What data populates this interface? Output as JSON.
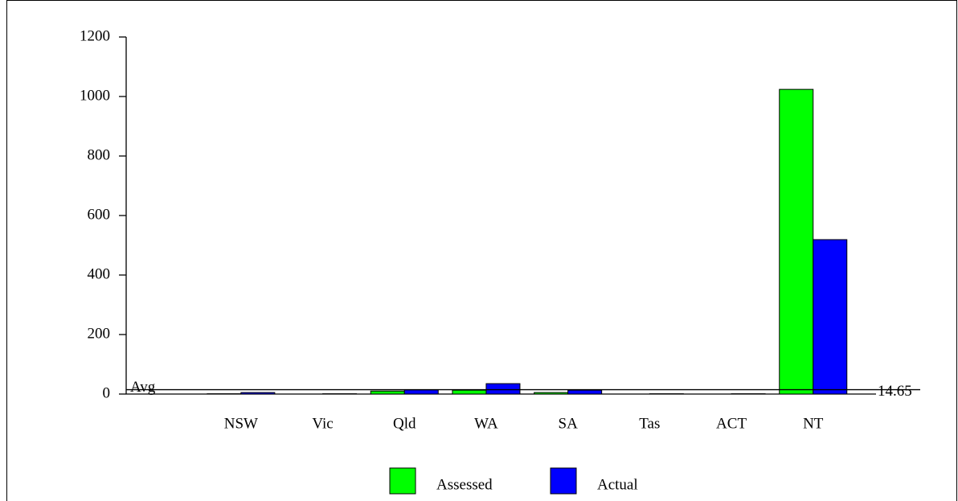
{
  "chart_data": {
    "type": "bar",
    "categories": [
      "NSW",
      "Vic",
      "Qld",
      "WA",
      "SA",
      "Tas",
      "ACT",
      "NT"
    ],
    "series": [
      {
        "name": "Assessed",
        "color": "#00ff00",
        "values": [
          1,
          0,
          10,
          13,
          5,
          0,
          0,
          1024
        ]
      },
      {
        "name": "Actual",
        "color": "#0000ff",
        "values": [
          5,
          1,
          14,
          35,
          13,
          1,
          1,
          519
        ]
      }
    ],
    "ylim": [
      0,
      1200
    ],
    "yticks": [
      0,
      200,
      400,
      600,
      800,
      1000,
      1200
    ],
    "reference_line": {
      "label": "Avg",
      "value": 14.65
    },
    "legend": "bottom"
  }
}
